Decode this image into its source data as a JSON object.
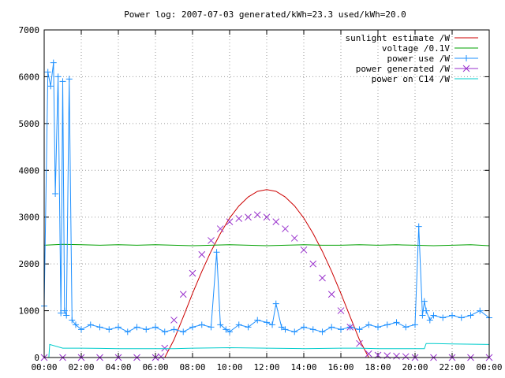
{
  "chart_data": {
    "type": "line",
    "title": "Power log: 2007-07-03 generated/kWh=23.3 used/kWh=20.0",
    "xlabel": "",
    "ylabel": "",
    "xlim": [
      0,
      24
    ],
    "ylim": [
      0,
      7000
    ],
    "x_ticks": [
      "00:00",
      "02:00",
      "04:00",
      "06:00",
      "08:00",
      "10:00",
      "12:00",
      "14:00",
      "16:00",
      "18:00",
      "20:00",
      "22:00",
      "00:00"
    ],
    "y_ticks": [
      "0",
      "1000",
      "2000",
      "3000",
      "4000",
      "5000",
      "6000",
      "7000"
    ],
    "grid": true,
    "legend_position": "top-right",
    "series": [
      {
        "name": "sunlight estimate /W",
        "color": "#cc0000",
        "style": "line",
        "x": [
          6.5,
          7,
          7.5,
          8,
          8.5,
          9,
          9.5,
          10,
          10.5,
          11,
          11.5,
          12,
          12.5,
          13,
          13.5,
          14,
          14.5,
          15,
          15.5,
          16,
          16.5,
          17,
          17.5
        ],
        "y": [
          0,
          380,
          870,
          1370,
          1840,
          2270,
          2650,
          2980,
          3240,
          3430,
          3550,
          3590,
          3550,
          3430,
          3240,
          2980,
          2650,
          2270,
          1840,
          1370,
          870,
          380,
          0
        ]
      },
      {
        "name": "voltage /0.1V",
        "color": "#00a000",
        "style": "line",
        "x": [
          0,
          1,
          2,
          3,
          4,
          5,
          6,
          7,
          8,
          9,
          10,
          11,
          12,
          13,
          14,
          15,
          16,
          17,
          18,
          19,
          20,
          21,
          22,
          23,
          24
        ],
        "y": [
          2400,
          2420,
          2410,
          2400,
          2410,
          2400,
          2410,
          2400,
          2390,
          2400,
          2410,
          2400,
          2390,
          2400,
          2410,
          2400,
          2400,
          2410,
          2400,
          2410,
          2400,
          2390,
          2400,
          2410,
          2390
        ]
      },
      {
        "name": "power use /W",
        "color": "#1e90ff",
        "style": "linespoints",
        "x": [
          0,
          0.2,
          0.35,
          0.5,
          0.6,
          0.75,
          0.9,
          1.0,
          1.1,
          1.2,
          1.35,
          1.5,
          1.7,
          2,
          2.5,
          3,
          3.5,
          4,
          4.5,
          5,
          5.5,
          6,
          6.5,
          7,
          7.5,
          8,
          8.5,
          9,
          9.3,
          9.5,
          9.8,
          10,
          10.5,
          11,
          11.5,
          12,
          12.3,
          12.5,
          12.8,
          13,
          13.5,
          14,
          14.5,
          15,
          15.5,
          16,
          16.5,
          17,
          17.5,
          18,
          18.5,
          19,
          19.5,
          20,
          20.2,
          20.4,
          20.5,
          20.6,
          20.8,
          21,
          21.5,
          22,
          22.5,
          23,
          23.5,
          24
        ],
        "y": [
          1100,
          6100,
          5800,
          6300,
          3500,
          6000,
          950,
          5900,
          1000,
          900,
          5950,
          800,
          700,
          600,
          700,
          650,
          600,
          650,
          550,
          650,
          600,
          650,
          550,
          600,
          550,
          650,
          700,
          650,
          2250,
          700,
          600,
          550,
          700,
          650,
          800,
          750,
          700,
          1150,
          650,
          600,
          550,
          650,
          600,
          550,
          650,
          600,
          650,
          600,
          700,
          650,
          700,
          750,
          650,
          700,
          2800,
          900,
          1200,
          1000,
          800,
          900,
          850,
          900,
          850,
          900,
          1000,
          850
        ]
      },
      {
        "name": "power generated /W",
        "color": "#9932cc",
        "style": "points",
        "x": [
          0,
          1,
          2,
          3,
          4,
          5,
          6,
          6.3,
          6.5,
          7,
          7.5,
          8,
          8.5,
          9,
          9.5,
          10,
          10.5,
          11,
          11.5,
          12,
          12.5,
          13,
          13.5,
          14,
          14.5,
          15,
          15.5,
          16,
          16.5,
          17,
          17.5,
          18,
          18.5,
          19,
          19.5,
          20,
          21,
          22,
          23,
          24
        ],
        "y": [
          0,
          0,
          0,
          0,
          0,
          0,
          0,
          20,
          200,
          800,
          1350,
          1800,
          2200,
          2500,
          2750,
          2900,
          2970,
          3000,
          3050,
          3000,
          2900,
          2750,
          2550,
          2300,
          2000,
          1700,
          1350,
          1000,
          650,
          300,
          80,
          50,
          40,
          30,
          20,
          0,
          0,
          0,
          0,
          0
        ]
      },
      {
        "name": "power on C14 /W",
        "color": "#00cccc",
        "style": "line",
        "x": [
          0,
          0.25,
          0.3,
          1,
          2,
          4,
          6,
          7,
          8,
          10,
          12,
          14,
          16,
          17,
          18,
          19,
          20,
          20.5,
          20.6,
          21,
          22,
          24
        ],
        "y": [
          0,
          0,
          280,
          200,
          200,
          190,
          190,
          190,
          200,
          210,
          200,
          190,
          200,
          200,
          190,
          190,
          190,
          190,
          300,
          300,
          290,
          280
        ]
      }
    ]
  }
}
